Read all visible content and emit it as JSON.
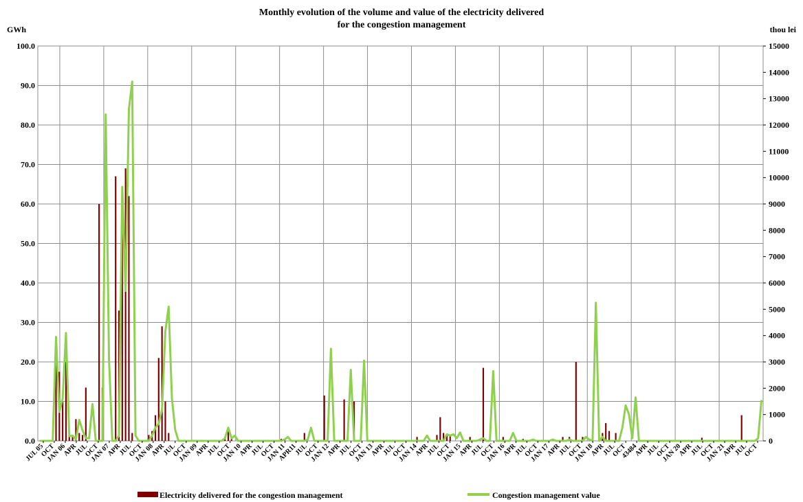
{
  "chart_data": {
    "type": "bar+line",
    "title": "Monthly evolution of the volume and value of the electricity delivered",
    "subtitle": "for the congestion management",
    "y_left_unit": "GWh",
    "y_right_unit": "thou lei",
    "y_left_ticks": [
      "100.0",
      "90.0",
      "80.0",
      "70.0",
      "60.0",
      "50.0",
      "40.0",
      "30.0",
      "20.0",
      "10.0",
      "0.0"
    ],
    "y_right_ticks": [
      "15000",
      "14000",
      "13000",
      "12000",
      "11000",
      "10000",
      "9000",
      "8000",
      "7000",
      "6000",
      "5000",
      "4000",
      "3000",
      "2000",
      "1000",
      "0"
    ],
    "ylim_left": [
      0,
      100
    ],
    "ylim_right": [
      0,
      15000
    ],
    "grid": true,
    "legend_position": "bottom",
    "x_tick_labels": [
      "JUL 05",
      "OCT",
      "JAN 06",
      "APR",
      "JUL",
      "OCT",
      "JAN 07",
      "APR",
      "JUL",
      "OCT",
      "JAN 08",
      "APR",
      "JUL",
      "OCT",
      "JAN 09",
      "APR",
      "JUL",
      "OCT",
      "JAN 10",
      "APR",
      "JUL",
      "OCT",
      "JAN 11",
      "APR11",
      "JUL",
      "OCT",
      "JAN 12",
      "APR",
      "JUL",
      "OCT",
      "JAN 13",
      "APR",
      "JUL",
      "OCT",
      "JAN 14",
      "APR",
      "JUL",
      "OCT",
      "JAN 15",
      "APR",
      "JUL",
      "OCT",
      "JAN 16",
      "APR",
      "JUL",
      "OCT",
      "JAN 17",
      "APR",
      "JUL",
      "OCT",
      "JAN 18",
      "APR",
      "JUL",
      "OCT",
      "43484",
      "APR",
      "JUL",
      "OCT",
      "JAN 20",
      "APR",
      "JUL",
      "OCT",
      "JAN 21",
      "APR",
      "JUL",
      "OCT"
    ],
    "series": [
      {
        "name": "Electricity delivered for the congestion management",
        "axis": "left",
        "color": "#800000",
        "kind": "bar",
        "values": [
          0,
          0,
          0,
          0,
          0,
          26,
          17.5,
          10,
          20,
          1.5,
          1,
          5.5,
          2,
          1.5,
          13.5,
          0,
          0,
          0,
          60,
          13.5,
          0,
          0,
          1,
          67,
          33,
          60,
          69,
          62,
          2,
          0,
          0,
          0,
          0,
          1.5,
          2.5,
          6.5,
          21,
          29,
          10,
          2,
          0,
          0,
          0,
          0,
          0,
          0,
          0,
          0,
          0,
          0,
          0,
          0,
          0,
          0,
          0,
          0,
          1,
          3.5,
          1,
          0,
          0,
          0,
          0,
          0,
          0,
          0,
          0,
          0,
          0,
          0,
          0,
          0,
          0,
          0.5,
          0.5,
          0,
          0,
          0,
          0,
          0,
          2,
          0,
          0,
          0,
          0,
          0,
          11.5,
          0,
          0,
          0,
          0,
          0,
          10.5,
          0,
          0,
          10,
          0,
          0,
          0,
          0,
          0,
          0,
          0,
          0,
          0,
          0,
          0,
          0,
          0,
          0,
          0,
          0,
          0,
          0,
          1,
          0,
          0,
          0,
          0,
          0,
          1.5,
          6,
          2,
          1.5,
          1.5,
          0,
          0,
          0,
          0,
          0,
          1,
          0,
          0,
          0,
          18.5,
          0,
          0,
          0,
          0,
          0,
          1,
          0,
          0,
          0,
          0,
          0,
          0.5,
          0,
          0,
          0,
          0,
          0,
          0,
          0,
          0,
          0,
          0,
          0,
          1,
          0,
          1,
          0,
          20,
          0,
          1,
          0,
          0,
          0,
          0,
          0,
          2,
          4.5,
          2.5,
          0,
          2,
          0,
          0,
          0,
          0,
          0,
          0,
          0,
          0,
          0,
          0,
          0,
          0,
          0,
          0,
          0,
          0,
          0,
          0,
          0,
          0,
          0,
          0,
          0,
          0,
          0,
          0.8,
          0,
          0,
          0,
          0,
          0,
          0,
          0,
          0,
          0,
          0,
          0,
          6.5
        ]
      },
      {
        "name": "Congestion management value",
        "axis": "right",
        "color": "#8fd14f",
        "kind": "line",
        "values": [
          0,
          0,
          0,
          0,
          0,
          3950,
          1100,
          1600,
          4100,
          180,
          200,
          50,
          800,
          400,
          100,
          100,
          1400,
          0,
          0,
          0,
          12400,
          3100,
          0,
          0,
          200,
          9650,
          5700,
          12600,
          13650,
          200,
          0,
          0,
          0,
          0,
          200,
          500,
          650,
          1200,
          4150,
          5100,
          1600,
          400,
          0,
          0,
          0,
          0,
          0,
          0,
          0,
          0,
          0,
          0,
          0,
          0,
          0,
          0,
          100,
          500,
          100,
          200,
          0,
          0,
          0,
          0,
          0,
          0,
          0,
          0,
          0,
          0,
          0,
          0,
          0,
          0,
          50,
          150,
          0,
          0,
          0,
          0,
          0,
          50,
          500,
          0,
          0,
          0,
          0,
          0,
          3500,
          0,
          0,
          0,
          0,
          0,
          2700,
          0,
          0,
          0,
          3050,
          0,
          0,
          0,
          0,
          0,
          0,
          0,
          0,
          0,
          0,
          0,
          0,
          0,
          0,
          0,
          0,
          0,
          0,
          200,
          0,
          0,
          0,
          0,
          0,
          250,
          200,
          250,
          100,
          320,
          0,
          0,
          0,
          0,
          0,
          50,
          100,
          0,
          0,
          2650,
          0,
          0,
          0,
          0,
          0,
          300,
          0,
          0,
          0,
          0,
          0,
          50,
          0,
          0,
          0,
          0,
          0,
          50,
          0,
          0,
          0,
          0,
          50,
          0,
          0,
          0,
          0,
          150,
          50,
          0,
          5250,
          0,
          150,
          0,
          0,
          0,
          0,
          0,
          500,
          1350,
          1000,
          100,
          1650,
          0,
          0,
          0,
          0,
          0,
          0,
          0,
          0,
          0,
          0,
          0,
          0,
          0,
          0,
          0,
          0,
          0,
          0,
          0,
          0,
          0,
          0,
          0,
          0,
          0,
          0,
          0,
          0,
          0,
          0,
          0,
          0,
          0,
          0,
          0,
          0,
          100,
          1550
        ]
      }
    ]
  }
}
